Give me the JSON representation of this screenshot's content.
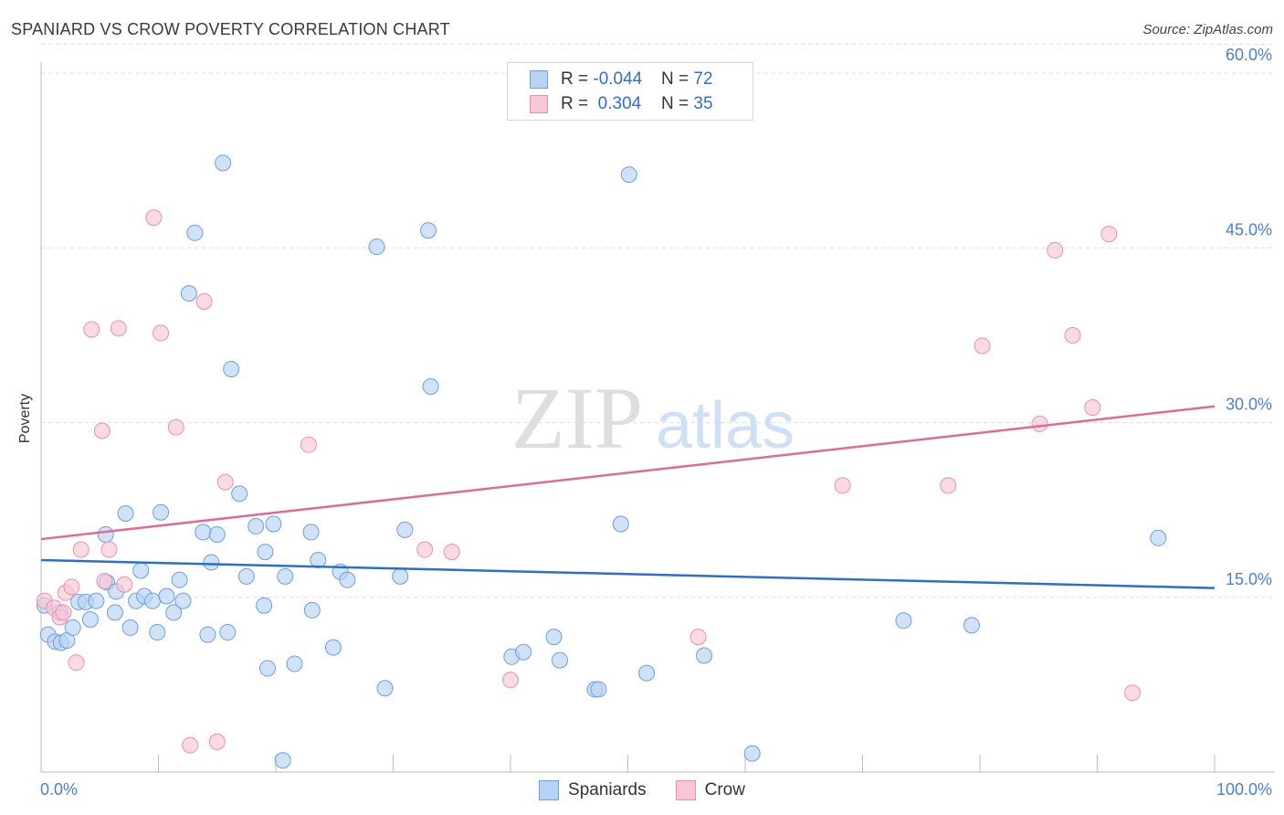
{
  "title": "SPANIARD VS CROW POVERTY CORRELATION CHART",
  "source": "Source: ZipAtlas.com",
  "watermark": {
    "zip": "ZIP",
    "atlas": "atlas"
  },
  "colors": {
    "blue_fill": "#b7d2f2",
    "blue_stroke": "#6c9fdf",
    "blue_line": "#2a6fd0",
    "pink_fill": "#f8c6d4",
    "pink_stroke": "#ec8fae",
    "pink_line": "#e06a93",
    "tick_text": "#4a7fd4",
    "grid": "#dcdcdc"
  },
  "legend_top": {
    "rows": [
      {
        "r_label": "R = ",
        "r_value": "-0.044",
        "n_label": "N = ",
        "n_value": "72"
      },
      {
        "r_label": "R = ",
        "r_value": " 0.304",
        "n_label": "N = ",
        "n_value": "35"
      }
    ]
  },
  "chart_data": {
    "type": "scatter",
    "title": "SPANIARD VS CROW POVERTY CORRELATION CHART",
    "xlabel": "",
    "ylabel": "Poverty",
    "xlim": [
      0,
      100
    ],
    "ylim": [
      0,
      62.5
    ],
    "x_tick_labels": [
      "0.0%",
      "100.0%"
    ],
    "y_ticks": [
      15,
      30,
      45,
      60
    ],
    "y_tick_labels": [
      "15.0%",
      "30.0%",
      "45.0%",
      "60.0%"
    ],
    "grid": true,
    "legend": "bottom",
    "series": [
      {
        "name": "Spaniards",
        "r": -0.044,
        "n": 72,
        "trend": [
          [
            0,
            18.2
          ],
          [
            100,
            15.8
          ]
        ],
        "points": [
          [
            0.3,
            14.3
          ],
          [
            0.6,
            11.8
          ],
          [
            1.2,
            11.2
          ],
          [
            1.6,
            13.7
          ],
          [
            1.7,
            11.1
          ],
          [
            2.2,
            11.3
          ],
          [
            2.7,
            12.4
          ],
          [
            3.2,
            14.6
          ],
          [
            3.8,
            14.6
          ],
          [
            4.2,
            13.1
          ],
          [
            4.7,
            14.7
          ],
          [
            5.6,
            16.3
          ],
          [
            5.5,
            20.4
          ],
          [
            6.4,
            15.5
          ],
          [
            7.2,
            22.2
          ],
          [
            6.3,
            13.7
          ],
          [
            7.6,
            12.4
          ],
          [
            8.5,
            17.3
          ],
          [
            8.1,
            14.7
          ],
          [
            8.8,
            15.1
          ],
          [
            9.5,
            14.7
          ],
          [
            9.9,
            12.0
          ],
          [
            10.2,
            22.3
          ],
          [
            10.7,
            15.1
          ],
          [
            11.3,
            13.7
          ],
          [
            11.8,
            16.5
          ],
          [
            12.1,
            14.7
          ],
          [
            12.6,
            41.1
          ],
          [
            13.1,
            46.3
          ],
          [
            13.8,
            20.6
          ],
          [
            14.2,
            11.8
          ],
          [
            14.5,
            18.0
          ],
          [
            15.0,
            20.4
          ],
          [
            15.9,
            12.0
          ],
          [
            16.2,
            34.6
          ],
          [
            16.9,
            23.9
          ],
          [
            17.5,
            16.8
          ],
          [
            18.3,
            21.1
          ],
          [
            19.0,
            14.3
          ],
          [
            19.1,
            18.9
          ],
          [
            19.3,
            8.9
          ],
          [
            19.8,
            21.3
          ],
          [
            20.6,
            1.0
          ],
          [
            20.8,
            16.8
          ],
          [
            21.6,
            9.3
          ],
          [
            23.0,
            20.6
          ],
          [
            23.1,
            13.9
          ],
          [
            23.6,
            18.2
          ],
          [
            24.9,
            10.7
          ],
          [
            25.5,
            17.2
          ],
          [
            26.1,
            16.5
          ],
          [
            28.6,
            45.1
          ],
          [
            29.3,
            7.2
          ],
          [
            30.6,
            16.8
          ],
          [
            31.0,
            20.8
          ],
          [
            33.0,
            46.5
          ],
          [
            33.2,
            33.1
          ],
          [
            40.1,
            9.9
          ],
          [
            41.1,
            10.3
          ],
          [
            43.7,
            11.6
          ],
          [
            44.2,
            9.6
          ],
          [
            47.2,
            7.1
          ],
          [
            47.5,
            7.1
          ],
          [
            49.4,
            21.3
          ],
          [
            50.1,
            51.3
          ],
          [
            51.6,
            8.5
          ],
          [
            56.5,
            10.0
          ],
          [
            60.6,
            1.6
          ],
          [
            73.5,
            13.0
          ],
          [
            79.3,
            12.6
          ],
          [
            95.2,
            20.1
          ],
          [
            15.5,
            52.3
          ]
        ]
      },
      {
        "name": "Crow",
        "r": 0.304,
        "n": 35,
        "trend": [
          [
            0,
            20.0
          ],
          [
            100,
            31.4
          ]
        ],
        "points": [
          [
            0.3,
            14.7
          ],
          [
            1.1,
            14.1
          ],
          [
            1.6,
            13.3
          ],
          [
            1.9,
            13.7
          ],
          [
            2.1,
            15.4
          ],
          [
            2.6,
            15.9
          ],
          [
            3.0,
            9.4
          ],
          [
            3.4,
            19.1
          ],
          [
            4.3,
            38.0
          ],
          [
            5.2,
            29.3
          ],
          [
            5.4,
            16.4
          ],
          [
            5.8,
            19.1
          ],
          [
            6.6,
            38.1
          ],
          [
            7.1,
            16.1
          ],
          [
            9.6,
            47.6
          ],
          [
            10.2,
            37.7
          ],
          [
            11.5,
            29.6
          ],
          [
            12.7,
            2.3
          ],
          [
            13.9,
            40.4
          ],
          [
            15.0,
            2.6
          ],
          [
            15.7,
            24.9
          ],
          [
            22.8,
            28.1
          ],
          [
            32.7,
            19.1
          ],
          [
            35.0,
            18.9
          ],
          [
            40.0,
            7.9
          ],
          [
            56.0,
            11.6
          ],
          [
            68.3,
            24.6
          ],
          [
            77.3,
            24.6
          ],
          [
            80.2,
            36.6
          ],
          [
            85.1,
            29.9
          ],
          [
            86.4,
            44.8
          ],
          [
            87.9,
            37.5
          ],
          [
            89.6,
            31.3
          ],
          [
            91.0,
            46.2
          ],
          [
            93.0,
            6.8
          ]
        ]
      }
    ]
  }
}
